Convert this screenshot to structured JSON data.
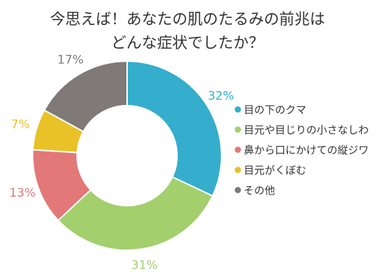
{
  "chart_data": {
    "type": "pie",
    "style": "donut",
    "title": [
      "今思えば！あなたの肌のたるみの前兆は",
      "どんな症状でしたか？"
    ],
    "categories": [
      "目の下のクマ",
      "目元や目じりの小さなしわ",
      "鼻から口にかけての縦ジワ",
      "目元がくぼむ",
      "その他"
    ],
    "values": [
      32,
      31,
      13,
      7,
      17
    ],
    "labels": [
      "32%",
      "31%",
      "13%",
      "7%",
      "17%"
    ],
    "colors": [
      "#34aecc",
      "#a3cf6d",
      "#e27878",
      "#e8c227",
      "#7f7978"
    ],
    "legend_position": "right"
  }
}
